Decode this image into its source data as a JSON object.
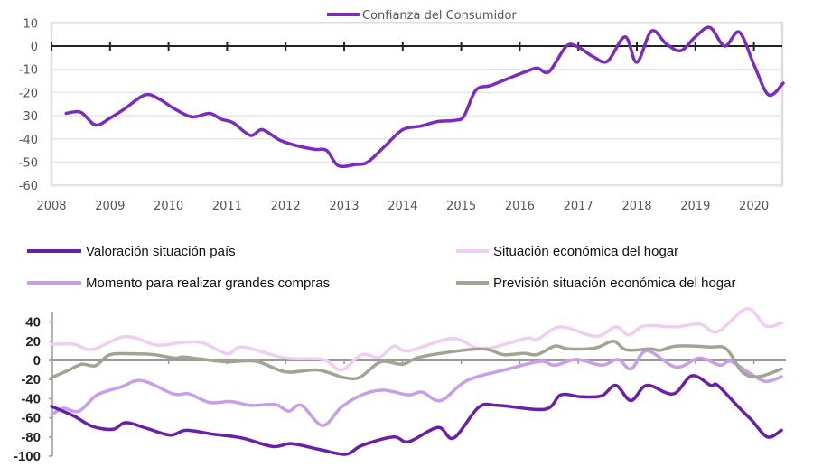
{
  "chart_data": [
    {
      "type": "line",
      "title": "",
      "xlabel": "",
      "ylabel": "",
      "xlim": [
        2008,
        2020.5
      ],
      "ylim": [
        -60,
        10
      ],
      "yticks": [
        "10",
        "0",
        "-10",
        "-20",
        "-30",
        "-40",
        "-50",
        "-60"
      ],
      "yticks_values": [
        10,
        0,
        -10,
        -20,
        -30,
        -40,
        -50,
        -60
      ],
      "xticks": [
        "2008",
        "2009",
        "2010",
        "2011",
        "2012",
        "2013",
        "2014",
        "2015",
        "2016",
        "2017",
        "2018",
        "2019",
        "2020"
      ],
      "grid": true,
      "legend_position": "top-center",
      "series": [
        {
          "name": "Confianza del Consumidor",
          "color": "#7b2cbf",
          "x": [
            2008.25,
            2008.5,
            2008.75,
            2009,
            2009.25,
            2009.6,
            2009.85,
            2010.1,
            2010.4,
            2010.7,
            2010.9,
            2011.1,
            2011.4,
            2011.6,
            2011.9,
            2012.2,
            2012.5,
            2012.7,
            2012.9,
            2013.2,
            2013.4,
            2013.7,
            2014,
            2014.3,
            2014.6,
            2014.9,
            2015.05,
            2015.25,
            2015.5,
            2015.8,
            2016.1,
            2016.3,
            2016.5,
            2016.8,
            2017,
            2017.25,
            2017.5,
            2017.8,
            2018,
            2018.25,
            2018.5,
            2018.75,
            2019,
            2019.25,
            2019.5,
            2019.75,
            2020,
            2020.25,
            2020.5
          ],
          "y": [
            -29,
            -28.5,
            -34,
            -31,
            -27,
            -21,
            -23,
            -27,
            -30.5,
            -29,
            -31.5,
            -33,
            -38.5,
            -36,
            -40.5,
            -43,
            -44.5,
            -45,
            -51.5,
            -51,
            -50,
            -43,
            -36,
            -34.5,
            -32.5,
            -32,
            -30,
            -19,
            -17,
            -14,
            -11,
            -9.5,
            -11,
            0,
            -0.5,
            -4.5,
            -6.5,
            4,
            -7,
            6.5,
            1,
            -2,
            4,
            8,
            0,
            6,
            -8,
            -21,
            -16
          ]
        }
      ]
    },
    {
      "type": "line",
      "title": "",
      "xlabel": "",
      "ylabel": "",
      "xlim": [
        2008,
        2020.5
      ],
      "ylim": [
        -100,
        50
      ],
      "yticks": [
        "40",
        "20",
        "0",
        "-20",
        "-40",
        "-60",
        "-80",
        "-100"
      ],
      "yticks_values": [
        40,
        20,
        0,
        -20,
        -40,
        -60,
        -80,
        -100
      ],
      "grid": false,
      "legend_position": "top",
      "series": [
        {
          "name": "Valoración situación país",
          "color": "#6a1fa8",
          "x": [
            2008.0,
            2008.38,
            2008.7,
            2009.05,
            2009.27,
            2009.63,
            2010.03,
            2010.3,
            2010.75,
            2011.25,
            2011.78,
            2012.1,
            2012.58,
            2013.03,
            2013.3,
            2013.84,
            2014.1,
            2014.6,
            2014.87,
            2015.3,
            2015.63,
            2016.43,
            2016.7,
            2017.05,
            2017.4,
            2017.64,
            2017.9,
            2018.17,
            2018.62,
            2018.94,
            2019.26,
            2019.38,
            2019.74,
            2019.97,
            2020.23,
            2020.47
          ],
          "y": [
            -48,
            -58,
            -69,
            -72,
            -65,
            -71,
            -78,
            -73,
            -77,
            -81,
            -90,
            -87,
            -93,
            -98,
            -89,
            -80,
            -85,
            -70,
            -81,
            -49,
            -47,
            -51,
            -36,
            -38,
            -37,
            -26,
            -42,
            -26,
            -35,
            -16,
            -26,
            -26,
            -49,
            -63,
            -80,
            -73
          ]
        },
        {
          "name": "Situación económica del hogar",
          "color": "#f0cdf2",
          "x": [
            2008.0,
            2008.38,
            2008.7,
            2009.27,
            2009.8,
            2010.26,
            2010.6,
            2011.0,
            2011.27,
            2012.0,
            2012.63,
            2012.95,
            2013.3,
            2013.6,
            2013.85,
            2014.1,
            2014.85,
            2015.36,
            2016.1,
            2016.3,
            2016.7,
            2017.3,
            2017.64,
            2017.86,
            2018.13,
            2018.67,
            2019.07,
            2019.38,
            2019.88,
            2020.2,
            2020.47
          ],
          "y": [
            17,
            17,
            11.5,
            25,
            16,
            19,
            18,
            7,
            14,
            2.5,
            1,
            -10,
            6,
            3,
            15,
            10,
            23,
            12,
            23,
            22,
            35,
            25,
            35,
            26.5,
            36,
            35,
            38,
            30,
            54,
            36,
            39
          ]
        },
        {
          "name": "Momento para realizar grandes compras",
          "color": "#c99ee8",
          "x": [
            2008.0,
            2008.2,
            2008.47,
            2008.78,
            2009.18,
            2009.54,
            2010.08,
            2010.35,
            2010.7,
            2011.07,
            2011.42,
            2011.82,
            2012.05,
            2012.27,
            2012.63,
            2012.95,
            2013.3,
            2013.66,
            2014.1,
            2014.33,
            2014.65,
            2015.1,
            2015.8,
            2016.35,
            2016.6,
            2016.97,
            2017.4,
            2017.68,
            2017.9,
            2018.17,
            2018.67,
            2019.07,
            2019.42,
            2019.6,
            2019.92,
            2020.2,
            2020.47
          ],
          "y": [
            -57,
            -50,
            -53,
            -36,
            -28,
            -21,
            -35,
            -35,
            -44,
            -43,
            -47,
            -46,
            -53,
            -47,
            -68,
            -49,
            -36,
            -31,
            -36,
            -33,
            -42,
            -21,
            -9,
            -1,
            -5,
            1,
            -5,
            1,
            -9,
            10,
            -7,
            2.5,
            -5,
            -1,
            -13,
            -22,
            -17
          ]
        },
        {
          "name": "Previsión situación económica del hogar",
          "color": "#a3a393",
          "x": [
            2008.0,
            2008.3,
            2008.52,
            2008.75,
            2009.0,
            2009.4,
            2009.75,
            2010.1,
            2010.26,
            2010.6,
            2011.0,
            2011.5,
            2012.0,
            2012.55,
            2013.0,
            2013.27,
            2013.63,
            2014.0,
            2014.33,
            2015.32,
            2015.72,
            2016.07,
            2016.3,
            2016.6,
            2016.83,
            2017.29,
            2017.6,
            2017.82,
            2018.23,
            2018.4,
            2018.68,
            2019.26,
            2019.53,
            2019.8,
            2020.07,
            2020.47
          ],
          "y": [
            -18,
            -10,
            -4,
            -5.5,
            6,
            7,
            6,
            2.5,
            3.5,
            1,
            -1.5,
            -1,
            -12,
            -10,
            -18,
            -17.5,
            -1.5,
            -4,
            4,
            12,
            6,
            7.5,
            6,
            15,
            12,
            13,
            20,
            11,
            12,
            10.5,
            15,
            14,
            12,
            -12,
            -17,
            -9
          ]
        }
      ]
    }
  ]
}
